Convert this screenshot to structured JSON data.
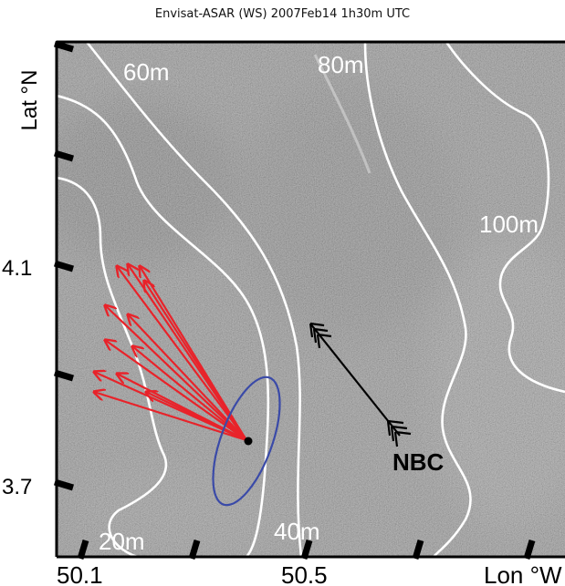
{
  "title": "Envisat-ASAR (WS) 2007Feb14 1h30m UTC",
  "axes": {
    "y_label": "Lat °N",
    "x_label": "Lon °W",
    "y_ticks": [
      "4.1",
      "3.7"
    ],
    "x_ticks": [
      "50.1",
      "50.5"
    ]
  },
  "isobaths": [
    "20m",
    "40m",
    "60m",
    "80m",
    "100m"
  ],
  "annotations": {
    "current_label": "NBC"
  },
  "colors": {
    "vectors": "#e8232a",
    "ellipse": "#3a4aa8",
    "isobath": "#ffffff",
    "current_arrow": "#000000",
    "sar_background": "#8f8f8f"
  }
}
